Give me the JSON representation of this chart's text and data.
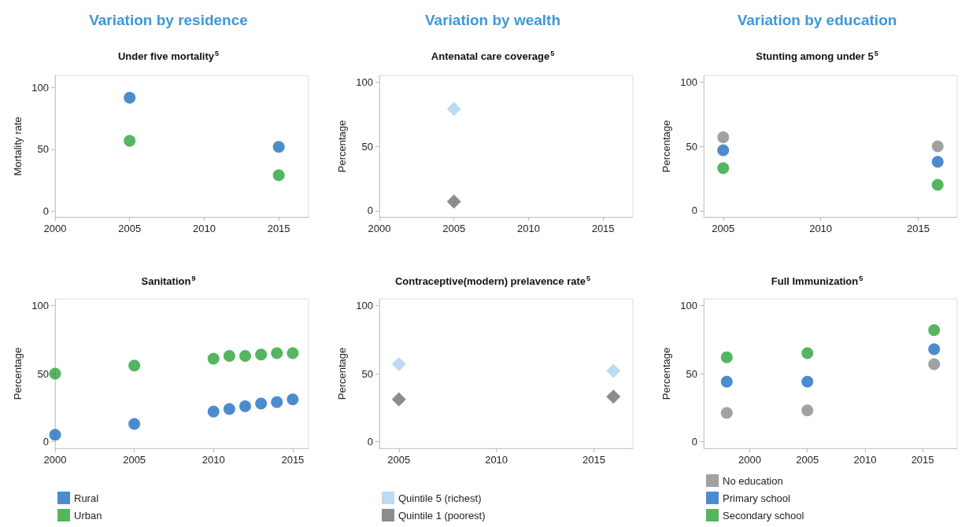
{
  "chart_data": [
    {
      "type": "scatter",
      "title": "Under five mortality$^{5}$",
      "annotations": [
        "Variation by residence"
      ],
      "ylabel": "Mortality rate",
      "x": [
        2005,
        2015
      ],
      "xlim": [
        2000,
        2017
      ],
      "xticks": [
        2000,
        2005,
        2010,
        2015
      ],
      "ylim": [
        -5,
        110
      ],
      "yticks": [
        0,
        50,
        100
      ],
      "marker": "circle",
      "grid": false,
      "legend": false,
      "series": [
        {
          "color": "#1f6fc0",
          "values": [
            92,
            52
          ]
        },
        {
          "color": "#2aa33a",
          "values": [
            57,
            29
          ]
        }
      ]
    },
    {
      "type": "scatter",
      "title": "Antenatal care coverage$^{5}$",
      "annotations": [
        "Variation by wealth"
      ],
      "ylabel": "Percentage",
      "x": [
        2005
      ],
      "xlim": [
        2000,
        2017
      ],
      "xticks": [
        2000,
        2005,
        2010,
        2015
      ],
      "ylim": [
        -5,
        105
      ],
      "yticks": [
        0,
        50,
        100
      ],
      "marker": "diamond",
      "grid": false,
      "legend": false,
      "series": [
        {
          "color": "#a9d2f0",
          "values": [
            79
          ]
        },
        {
          "color": "#6f6f6f",
          "values": [
            7
          ]
        }
      ]
    },
    {
      "type": "scatter",
      "title": "Stunting among under 5$^{5}$",
      "annotations": [
        "Variation by education"
      ],
      "ylabel": "Percentage",
      "x": [
        2005,
        2016
      ],
      "xlim": [
        2004,
        2017
      ],
      "xticks": [
        2005,
        2010,
        2015
      ],
      "ylim": [
        -5,
        105
      ],
      "yticks": [
        0,
        50,
        100
      ],
      "marker": "circle",
      "grid": false,
      "legend": false,
      "series": [
        {
          "color": "#8a8a8a",
          "values": [
            57,
            50
          ]
        },
        {
          "color": "#1f6fc0",
          "values": [
            47,
            38
          ]
        },
        {
          "color": "#2aa33a",
          "values": [
            33,
            20
          ]
        }
      ]
    },
    {
      "type": "scatter",
      "title": "Sanitation$^{9}$",
      "ylabel": "Percentage",
      "x": [
        2000,
        2005,
        2010,
        2011,
        2012,
        2013,
        2014,
        2015
      ],
      "xlim": [
        2000,
        2016
      ],
      "xticks": [
        2000,
        2005,
        2010,
        2015
      ],
      "ylim": [
        -5,
        105
      ],
      "yticks": [
        0,
        50,
        100
      ],
      "marker": "circle",
      "grid": false,
      "legend": "bottom",
      "series": [
        {
          "name": "Rural",
          "color": "#1f6fc0",
          "values": [
            5,
            13,
            22,
            24,
            26,
            28,
            29,
            31
          ]
        },
        {
          "name": "Urban",
          "color": "#2aa33a",
          "values": [
            50,
            56,
            61,
            63,
            63,
            64,
            65,
            65
          ]
        }
      ]
    },
    {
      "type": "scatter",
      "title": "Contraceptive(modern) prelavence rate$^{5}$",
      "ylabel": "Percentage",
      "x": [
        2005,
        2016
      ],
      "xlim": [
        2004,
        2017
      ],
      "xticks": [
        2005,
        2010,
        2015
      ],
      "ylim": [
        -5,
        105
      ],
      "yticks": [
        0,
        50,
        100
      ],
      "marker": "diamond",
      "grid": false,
      "legend": "bottom",
      "series": [
        {
          "name": "Quintile 5 (richest)",
          "color": "#a9d2f0",
          "values": [
            57,
            52
          ]
        },
        {
          "name": "Quintile 1 (poorest)",
          "color": "#6f6f6f",
          "values": [
            31,
            33
          ]
        }
      ]
    },
    {
      "type": "scatter",
      "title": "Full Immunization$^{5}$",
      "ylabel": "Percentage",
      "x": [
        1998,
        2005,
        2016
      ],
      "xlim": [
        1996,
        2018
      ],
      "xticks": [
        2000,
        2005,
        2010,
        2015
      ],
      "ylim": [
        -5,
        105
      ],
      "yticks": [
        0,
        50,
        100
      ],
      "marker": "circle",
      "grid": false,
      "legend": "bottom",
      "series": [
        {
          "name": "No education",
          "color": "#8a8a8a",
          "values": [
            21,
            23,
            57
          ]
        },
        {
          "name": "Primary school",
          "color": "#1f6fc0",
          "values": [
            44,
            44,
            68
          ]
        },
        {
          "name": "Secondary school",
          "color": "#2aa33a",
          "values": [
            62,
            65,
            82
          ]
        }
      ]
    }
  ]
}
